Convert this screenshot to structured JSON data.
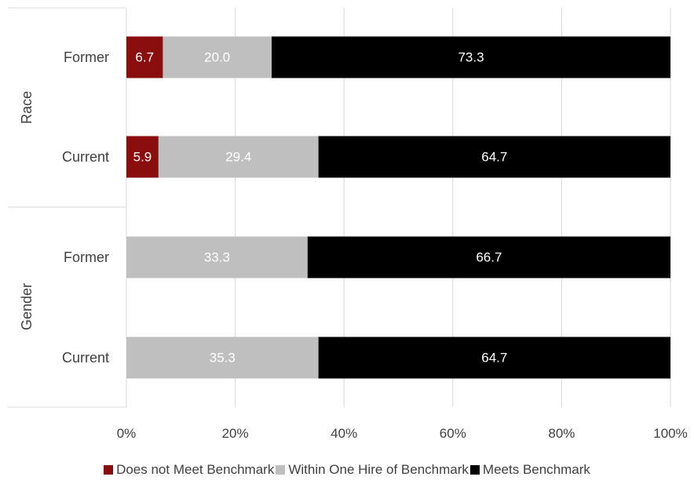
{
  "chart_data": {
    "type": "bar",
    "orientation": "horizontal",
    "stacked": "percent",
    "groups": [
      {
        "name": "Race",
        "categories": [
          "Former",
          "Current"
        ]
      },
      {
        "name": "Gender",
        "categories": [
          "Former",
          "Current"
        ]
      }
    ],
    "series": [
      {
        "name": "Does not Meet Benchmark",
        "color": "#8b0e0e",
        "label_color": "#ffffff",
        "values": [
          6.7,
          5.9,
          0,
          0
        ],
        "labels": [
          "6.7",
          "5.9",
          "",
          ""
        ]
      },
      {
        "name": "Within One Hire of Benchmark",
        "color": "#bfbfbf",
        "label_color": "#ffffff",
        "values": [
          20.0,
          29.4,
          33.3,
          35.3
        ],
        "labels": [
          "20.0",
          "29.4",
          "33.3",
          "35.3"
        ]
      },
      {
        "name": "Meets Benchmark",
        "color": "#000000",
        "label_color": "#ffffff",
        "values": [
          73.3,
          64.7,
          66.7,
          64.7
        ],
        "labels": [
          "73.3",
          "64.7",
          "66.7",
          "64.7"
        ]
      }
    ],
    "x_ticks": [
      "0%",
      "20%",
      "40%",
      "60%",
      "80%",
      "100%"
    ],
    "xlim": [
      0,
      100
    ],
    "grid": "vertical",
    "legend_position": "bottom"
  }
}
